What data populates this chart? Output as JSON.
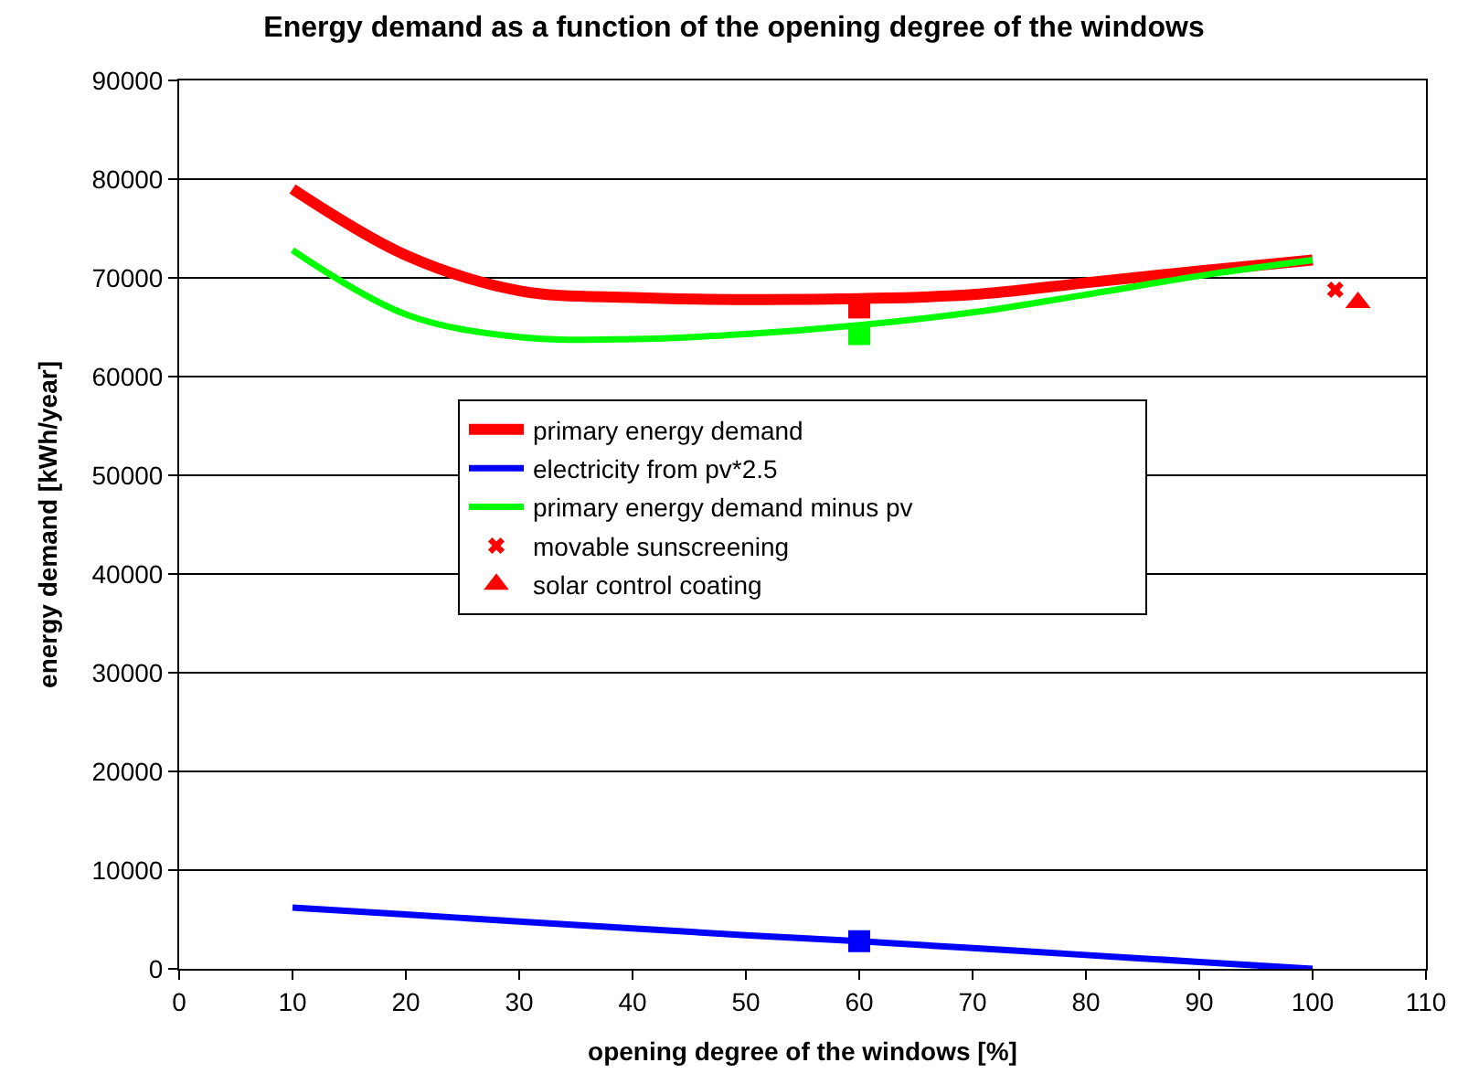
{
  "chart_data": {
    "type": "line",
    "title": "Energy demand as a function of the opening degree of the windows",
    "xlabel": "opening degree of the windows [%]",
    "ylabel": "energy demand [kWh/year]",
    "x": [
      10,
      20,
      30,
      40,
      50,
      60,
      70,
      80,
      90,
      100
    ],
    "series": [
      {
        "name": "primary energy demand",
        "color": "#ff0000",
        "values": [
          79000,
          72300,
          68700,
          68000,
          67800,
          67900,
          68300,
          69500,
          70700,
          71800
        ]
      },
      {
        "name": "electricity from pv*2.5",
        "color": "#0000ff",
        "values": [
          6200,
          5500,
          4800,
          4100,
          3400,
          2800,
          2100,
          1400,
          700,
          0
        ]
      },
      {
        "name": "primary energy demand minus pv",
        "color": "#00ff00",
        "values": [
          72800,
          66300,
          64000,
          63800,
          64300,
          65200,
          66500,
          68300,
          70200,
          71800
        ]
      },
      {
        "name": "movable sunscreening",
        "type": "scatter",
        "marker": "cross",
        "color": "#ff0000",
        "x": [
          102
        ],
        "values": [
          68800
        ]
      },
      {
        "name": "solar control coating",
        "type": "scatter",
        "marker": "triangle",
        "color": "#ff0000",
        "x": [
          104
        ],
        "values": [
          67500
        ]
      },
      {
        "type": "scatter",
        "marker": "square",
        "color": "#ff0000",
        "x": [
          60
        ],
        "values": [
          67000
        ]
      },
      {
        "type": "scatter",
        "marker": "square",
        "color": "#00ff00",
        "x": [
          60
        ],
        "values": [
          64300
        ]
      },
      {
        "type": "scatter",
        "marker": "square",
        "color": "#0000ff",
        "x": [
          60
        ],
        "values": [
          2800
        ]
      }
    ],
    "xlim": [
      0,
      110
    ],
    "xticks": [
      0,
      10,
      20,
      30,
      40,
      50,
      60,
      70,
      80,
      90,
      100,
      110
    ],
    "ylim": [
      0,
      90000
    ],
    "yticks": [
      0,
      10000,
      20000,
      30000,
      40000,
      50000,
      60000,
      70000,
      80000,
      90000
    ],
    "grid": "y",
    "legend": "center",
    "marker": "none",
    "line_style": "solid"
  }
}
